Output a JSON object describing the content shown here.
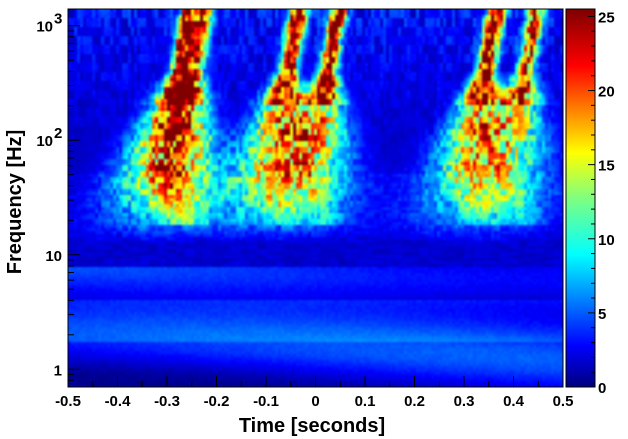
{
  "chart_data": {
    "type": "heatmap",
    "xlabel": "Time [seconds]",
    "ylabel": "Frequency [Hz]",
    "x_scale": "linear",
    "y_scale": "log",
    "xlim": [
      -0.5,
      0.5
    ],
    "ylim": [
      0.7,
      1400
    ],
    "x_ticks": [
      {
        "value": -0.5,
        "label": "-0.5"
      },
      {
        "value": -0.4,
        "label": "-0.4"
      },
      {
        "value": -0.3,
        "label": "-0.3"
      },
      {
        "value": -0.2,
        "label": "-0.2"
      },
      {
        "value": -0.1,
        "label": "-0.1"
      },
      {
        "value": 0,
        "label": "0"
      },
      {
        "value": 0.1,
        "label": "0.1"
      },
      {
        "value": 0.2,
        "label": "0.2"
      },
      {
        "value": 0.3,
        "label": "0.3"
      },
      {
        "value": 0.4,
        "label": "0.4"
      },
      {
        "value": 0.5,
        "label": "0.5"
      }
    ],
    "y_ticks": [
      {
        "value": 1,
        "label": "1"
      },
      {
        "value": 10,
        "label": "10"
      },
      {
        "value": 100,
        "label": "10",
        "exponent": "2"
      },
      {
        "value": 1000,
        "label": "10",
        "exponent": "3"
      }
    ],
    "colorbar": {
      "colormap": "jet",
      "range": [
        0,
        25.5
      ],
      "ticks": [
        {
          "value": 0,
          "label": "0"
        },
        {
          "value": 5,
          "label": "5"
        },
        {
          "value": 10,
          "label": "10"
        },
        {
          "value": 15,
          "label": "15"
        },
        {
          "value": 20,
          "label": "20"
        },
        {
          "value": 25,
          "label": "25"
        }
      ]
    },
    "events": [
      {
        "time": -0.3,
        "level": 25
      },
      {
        "time": -0.27,
        "level": 20
      },
      {
        "time": -0.08,
        "level": 25
      },
      {
        "time": 0.0,
        "level": 25
      },
      {
        "time": 0.32,
        "level": 25
      },
      {
        "time": 0.4,
        "level": 20
      }
    ],
    "grid": false
  }
}
